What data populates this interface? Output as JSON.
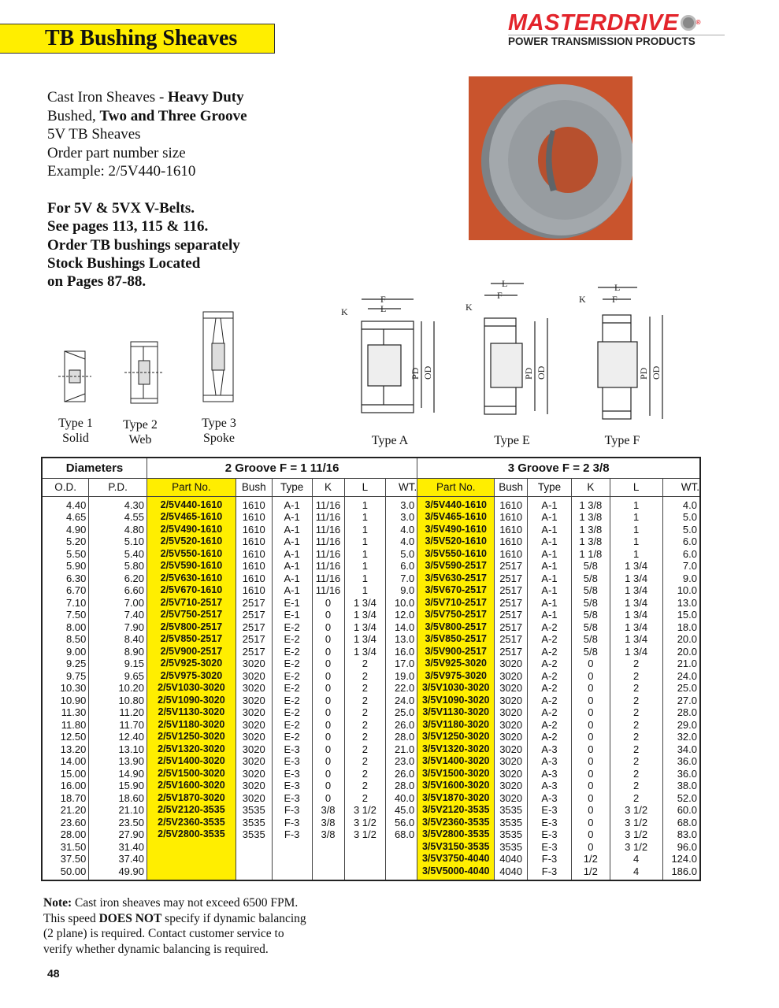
{
  "title": "TB Bushing Sheaves",
  "logo": {
    "brand": "MASTERDRIVE",
    "tagline": "POWER TRANSMISSION PRODUCTS"
  },
  "intro": {
    "l1a": "Cast Iron Sheaves - ",
    "l1b": "Heavy Duty",
    "l2a": "Bushed, ",
    "l2b": "Two and Three Groove",
    "l3": "5V TB Sheaves",
    "l4": "Order part number size",
    "l5": "Example: 2/5V440-1610"
  },
  "notes": [
    "For 5V & 5VX V-Belts.",
    "See pages 113, 115 & 116.",
    "Order TB bushings separately",
    "Stock Bushings Located",
    "on Pages 87-88."
  ],
  "figures": {
    "type1": [
      "Type 1",
      "Solid"
    ],
    "type2": [
      "Type 2",
      "Web"
    ],
    "type3": [
      "Type 3",
      "Spoke"
    ],
    "typeA": "Type A",
    "typeE": "Type E",
    "typeF": "Type F",
    "dims": {
      "K": "K",
      "F": "F",
      "L": "L",
      "PD": "PD",
      "OD": "OD"
    }
  },
  "table": {
    "group_diam": "Diameters",
    "group2": "2 Groove F = 1 11/16",
    "group3": "3 Groove  F = 2 3/8",
    "headers": [
      "O.D.",
      "P.D.",
      "Part No.",
      "Bush",
      "Type",
      "K",
      "L",
      "WT.",
      "Part No.",
      "Bush",
      "Type",
      "K",
      "L",
      "WT."
    ],
    "rows": [
      [
        "4.40",
        "4.30",
        "2/5V440-1610",
        "1610",
        "A-1",
        "11/16",
        "1",
        "3.0",
        "3/5V440-1610",
        "1610",
        "A-1",
        "1 3/8",
        "1",
        "4.0"
      ],
      [
        "4.65",
        "4.55",
        "2/5V465-1610",
        "1610",
        "A-1",
        "11/16",
        "1",
        "3.0",
        "3/5V465-1610",
        "1610",
        "A-1",
        "1 3/8",
        "1",
        "5.0"
      ],
      [
        "4.90",
        "4.80",
        "2/5V490-1610",
        "1610",
        "A-1",
        "11/16",
        "1",
        "4.0",
        "3/5V490-1610",
        "1610",
        "A-1",
        "1 3/8",
        "1",
        "5.0"
      ],
      [
        "5.20",
        "5.10",
        "2/5V520-1610",
        "1610",
        "A-1",
        "11/16",
        "1",
        "4.0",
        "3/5V520-1610",
        "1610",
        "A-1",
        "1 3/8",
        "1",
        "6.0"
      ],
      [
        "5.50",
        "5.40",
        "2/5V550-1610",
        "1610",
        "A-1",
        "11/16",
        "1",
        "5.0",
        "3/5V550-1610",
        "1610",
        "A-1",
        "1 1/8",
        "1",
        "6.0"
      ],
      [
        "5.90",
        "5.80",
        "2/5V590-1610",
        "1610",
        "A-1",
        "11/16",
        "1",
        "6.0",
        "3/5V590-2517",
        "2517",
        "A-1",
        "5/8",
        "1 3/4",
        "7.0"
      ],
      [
        "6.30",
        "6.20",
        "2/5V630-1610",
        "1610",
        "A-1",
        "11/16",
        "1",
        "7.0",
        "3/5V630-2517",
        "2517",
        "A-1",
        "5/8",
        "1 3/4",
        "9.0"
      ],
      [
        "6.70",
        "6.60",
        "2/5V670-1610",
        "1610",
        "A-1",
        "11/16",
        "1",
        "9.0",
        "3/5V670-2517",
        "2517",
        "A-1",
        "5/8",
        "1 3/4",
        "10.0"
      ],
      [
        "7.10",
        "7.00",
        "2/5V710-2517",
        "2517",
        "E-1",
        "0",
        "1 3/4",
        "10.0",
        "3/5V710-2517",
        "2517",
        "A-1",
        "5/8",
        "1 3/4",
        "13.0"
      ],
      [
        "7.50",
        "7.40",
        "2/5V750-2517",
        "2517",
        "E-1",
        "0",
        "1 3/4",
        "12.0",
        "3/5V750-2517",
        "2517",
        "A-1",
        "5/8",
        "1 3/4",
        "15.0"
      ],
      [
        "8.00",
        "7.90",
        "2/5V800-2517",
        "2517",
        "E-2",
        "0",
        "1 3/4",
        "14.0",
        "3/5V800-2517",
        "2517",
        "A-2",
        "5/8",
        "1 3/4",
        "18.0"
      ],
      [
        "8.50",
        "8.40",
        "2/5V850-2517",
        "2517",
        "E-2",
        "0",
        "1 3/4",
        "13.0",
        "3/5V850-2517",
        "2517",
        "A-2",
        "5/8",
        "1 3/4",
        "20.0"
      ],
      [
        "9.00",
        "8.90",
        "2/5V900-2517",
        "2517",
        "E-2",
        "0",
        "1 3/4",
        "16.0",
        "3/5V900-2517",
        "2517",
        "A-2",
        "5/8",
        "1 3/4",
        "20.0"
      ],
      [
        "9.25",
        "9.15",
        "2/5V925-3020",
        "3020",
        "E-2",
        "0",
        "2",
        "17.0",
        "3/5V925-3020",
        "3020",
        "A-2",
        "0",
        "2",
        "21.0"
      ],
      [
        "9.75",
        "9.65",
        "2/5V975-3020",
        "3020",
        "E-2",
        "0",
        "2",
        "19.0",
        "3/5V975-3020",
        "3020",
        "A-2",
        "0",
        "2",
        "24.0"
      ],
      [
        "10.30",
        "10.20",
        "2/5V1030-3020",
        "3020",
        "E-2",
        "0",
        "2",
        "22.0",
        "3/5V1030-3020",
        "3020",
        "A-2",
        "0",
        "2",
        "25.0"
      ],
      [
        "10.90",
        "10.80",
        "2/5V1090-3020",
        "3020",
        "E-2",
        "0",
        "2",
        "24.0",
        "3/5V1090-3020",
        "3020",
        "A-2",
        "0",
        "2",
        "27.0"
      ],
      [
        "11.30",
        "11.20",
        "2/5V1130-3020",
        "3020",
        "E-2",
        "0",
        "2",
        "25.0",
        "3/5V1130-3020",
        "3020",
        "A-2",
        "0",
        "2",
        "28.0"
      ],
      [
        "11.80",
        "11.70",
        "2/5V1180-3020",
        "3020",
        "E-2",
        "0",
        "2",
        "26.0",
        "3/5V1180-3020",
        "3020",
        "A-2",
        "0",
        "2",
        "29.0"
      ],
      [
        "12.50",
        "12.40",
        "2/5V1250-3020",
        "3020",
        "E-2",
        "0",
        "2",
        "28.0",
        "3/5V1250-3020",
        "3020",
        "A-2",
        "0",
        "2",
        "32.0"
      ],
      [
        "13.20",
        "13.10",
        "2/5V1320-3020",
        "3020",
        "E-3",
        "0",
        "2",
        "21.0",
        "3/5V1320-3020",
        "3020",
        "A-3",
        "0",
        "2",
        "34.0"
      ],
      [
        "14.00",
        "13.90",
        "2/5V1400-3020",
        "3020",
        "E-3",
        "0",
        "2",
        "23.0",
        "3/5V1400-3020",
        "3020",
        "A-3",
        "0",
        "2",
        "36.0"
      ],
      [
        "15.00",
        "14.90",
        "2/5V1500-3020",
        "3020",
        "E-3",
        "0",
        "2",
        "26.0",
        "3/5V1500-3020",
        "3020",
        "A-3",
        "0",
        "2",
        "36.0"
      ],
      [
        "16.00",
        "15.90",
        "2/5V1600-3020",
        "3020",
        "E-3",
        "0",
        "2",
        "28.0",
        "3/5V1600-3020",
        "3020",
        "A-3",
        "0",
        "2",
        "38.0"
      ],
      [
        "18.70",
        "18.60",
        "2/5V1870-3020",
        "3020",
        "E-3",
        "0",
        "2",
        "40.0",
        "3/5V1870-3020",
        "3020",
        "A-3",
        "0",
        "2",
        "52.0"
      ],
      [
        "21.20",
        "21.10",
        "2/5V2120-3535",
        "3535",
        "F-3",
        "3/8",
        "3 1/2",
        "45.0",
        "3/5V2120-3535",
        "3535",
        "E-3",
        "0",
        "3 1/2",
        "60.0"
      ],
      [
        "23.60",
        "23.50",
        "2/5V2360-3535",
        "3535",
        "F-3",
        "3/8",
        "3 1/2",
        "56.0",
        "3/5V2360-3535",
        "3535",
        "E-3",
        "0",
        "3 1/2",
        "68.0"
      ],
      [
        "28.00",
        "27.90",
        "2/5V2800-3535",
        "3535",
        "F-3",
        "3/8",
        "3 1/2",
        "68.0",
        "3/5V2800-3535",
        "3535",
        "E-3",
        "0",
        "3 1/2",
        "83.0"
      ],
      [
        "31.50",
        "31.40",
        "",
        "",
        "",
        "",
        "",
        "",
        "3/5V3150-3535",
        "3535",
        "E-3",
        "0",
        "3 1/2",
        "96.0"
      ],
      [
        "37.50",
        "37.40",
        "",
        "",
        "",
        "",
        "",
        "",
        "3/5V3750-4040",
        "4040",
        "F-3",
        "1/2",
        "4",
        "124.0"
      ],
      [
        "50.00",
        "49.90",
        "",
        "",
        "",
        "",
        "",
        "",
        "3/5V5000-4040",
        "4040",
        "F-3",
        "1/2",
        "4",
        "186.0"
      ]
    ]
  },
  "note": {
    "label": "Note:",
    "l1": " Cast iron sheaves may not exceed 6500 FPM.",
    "l2a": "This speed ",
    "l2b": "DOES NOT",
    "l2c": " specify if dynamic balancing",
    "l3": "(2 plane) is required. Contact customer service to",
    "l4": "verify whether dynamic balancing is required."
  },
  "page_number": "48",
  "colors": {
    "highlight": "#ffee00",
    "brand_red": "#e3242b",
    "photo_bg": "#c9542d",
    "casting_gray": "#9a9fa3"
  }
}
